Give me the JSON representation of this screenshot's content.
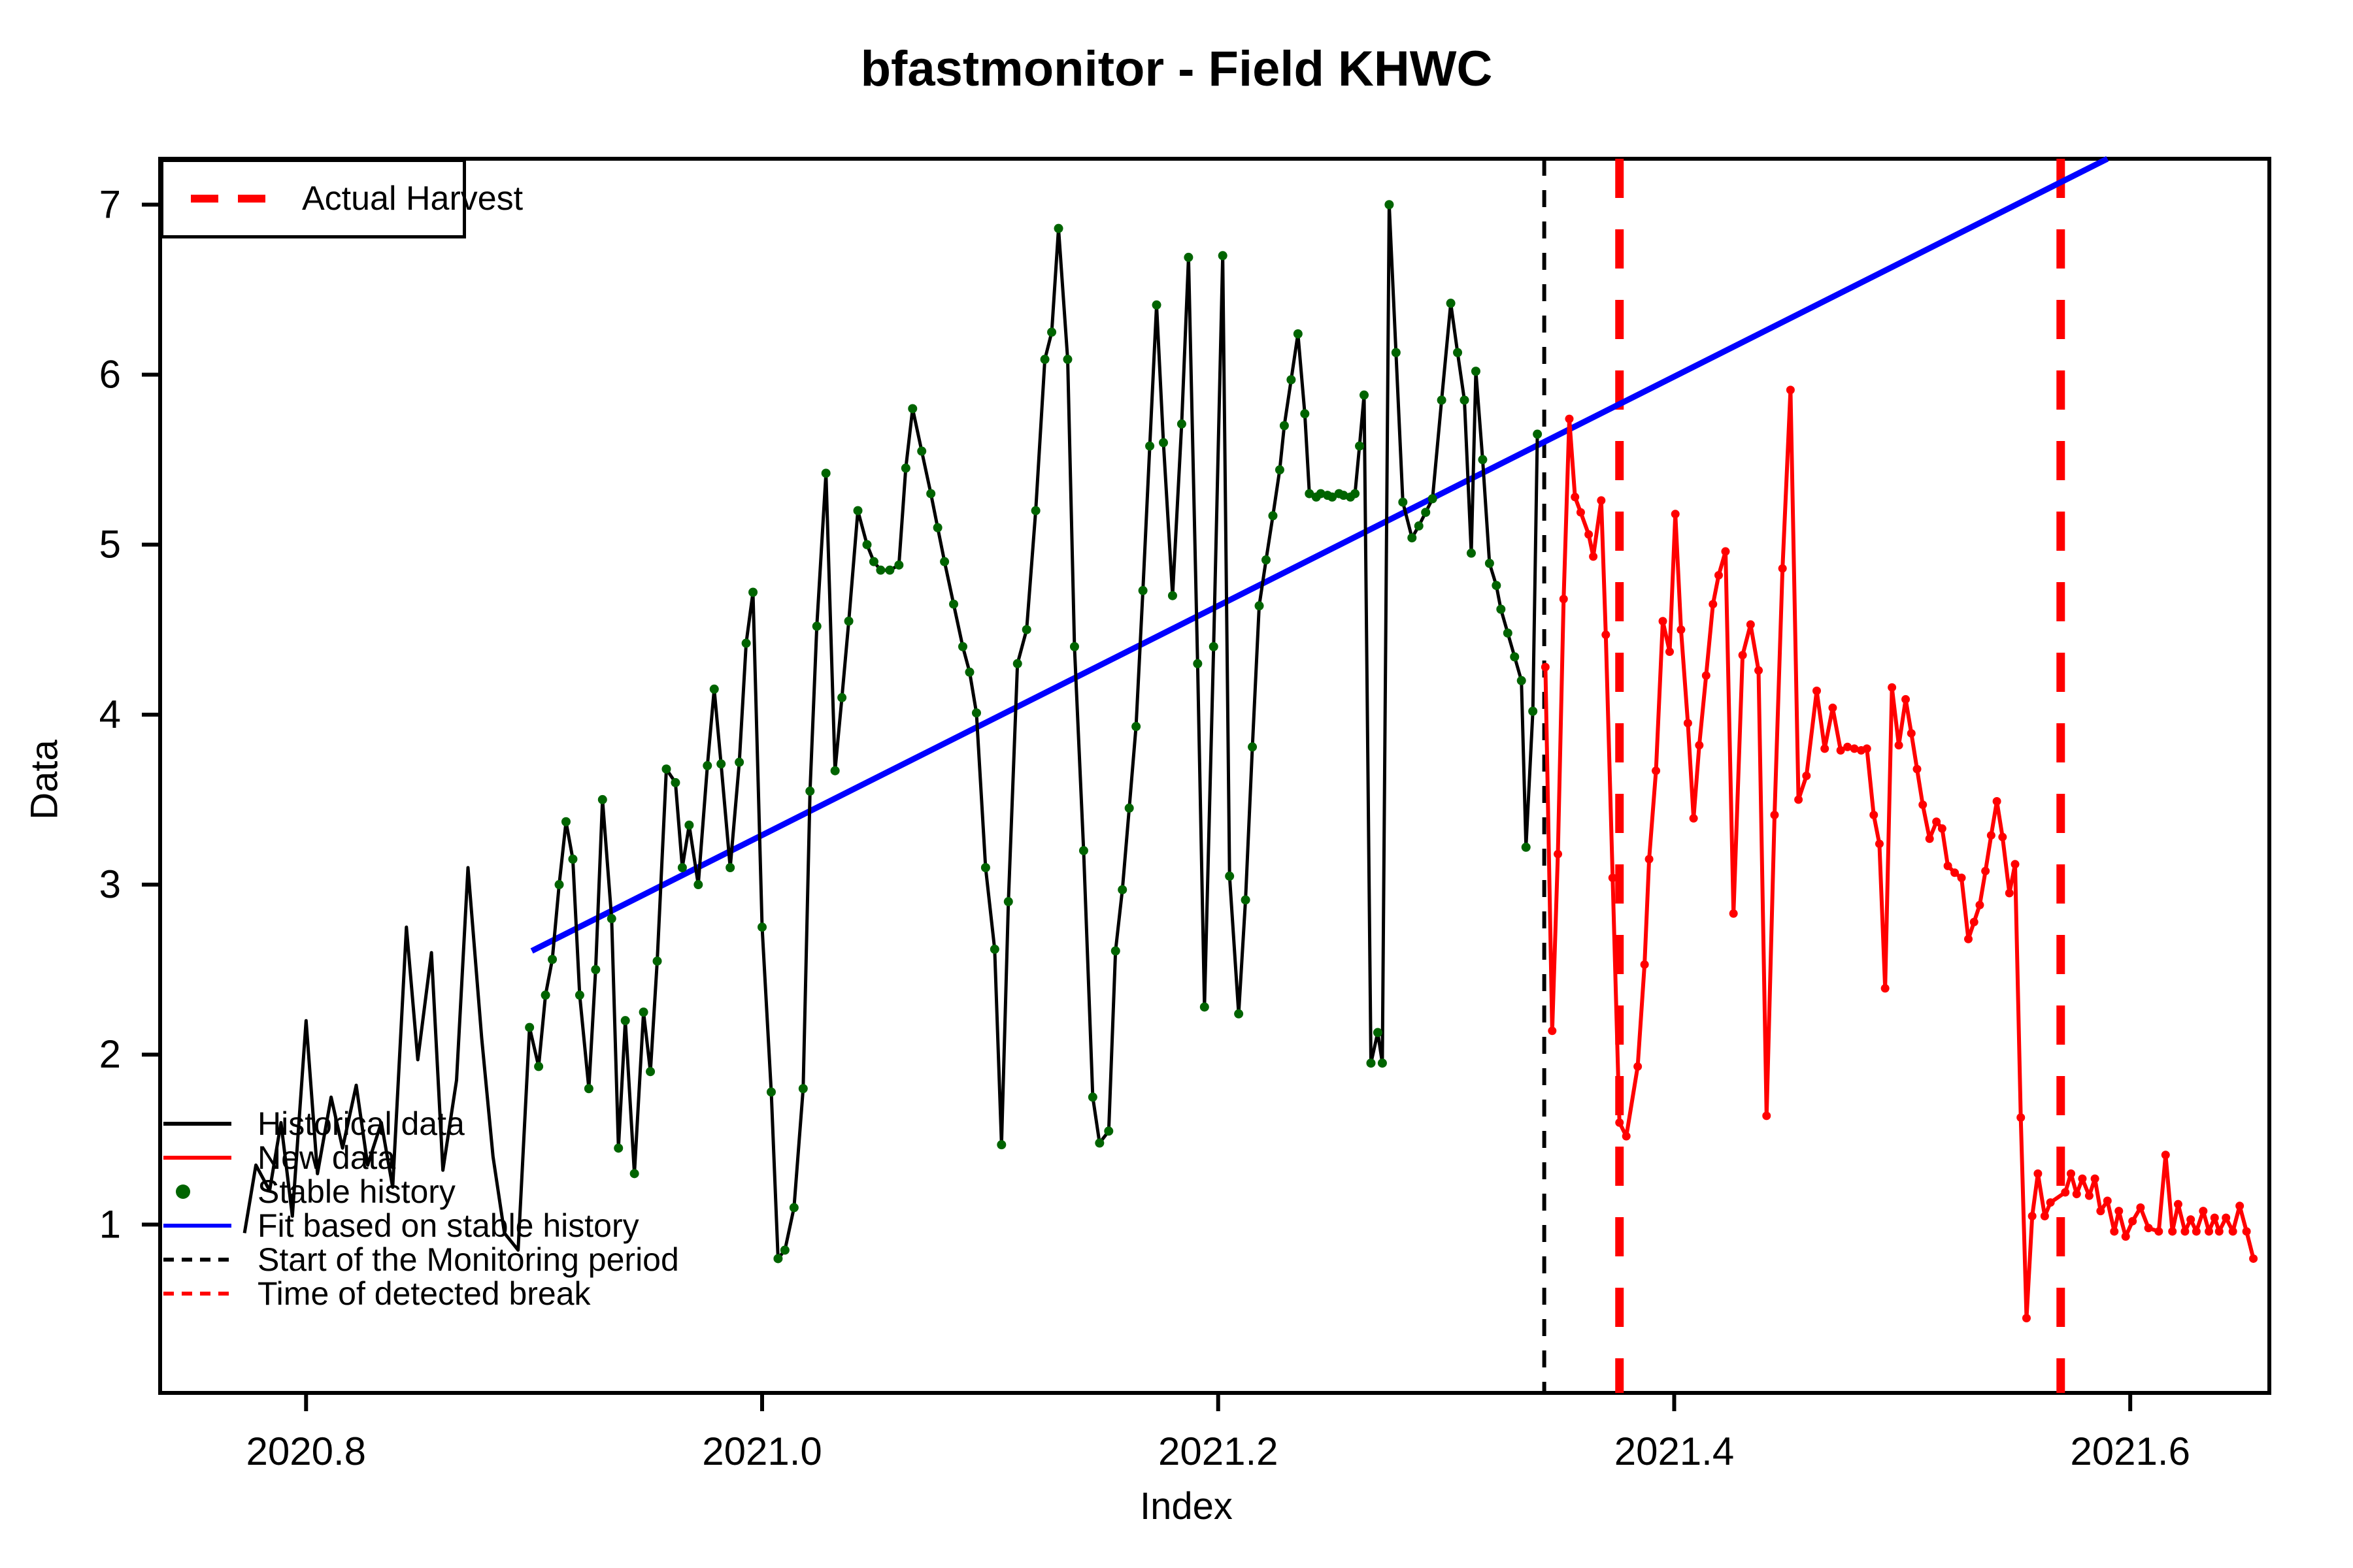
{
  "title": "bfastmonitor - Field KHWC",
  "legend_box": {
    "label": "Actual Harvest"
  },
  "legend_items": [
    {
      "label": "Historical data",
      "kind": "line",
      "color": "#000000"
    },
    {
      "label": "New data",
      "kind": "line",
      "color": "#FF0000"
    },
    {
      "label": "Stable history",
      "kind": "dot",
      "color": "#006400"
    },
    {
      "label": "Fit based on stable history",
      "kind": "line",
      "color": "#0000FF"
    },
    {
      "label": "Start of the Monitoring period",
      "kind": "dashed-line",
      "color": "#000000"
    },
    {
      "label": "Time of detected break",
      "kind": "dashed-line",
      "color": "#FF0000"
    }
  ],
  "chart_data": {
    "type": "line",
    "title": "bfastmonitor - Field KHWC",
    "xlabel": "Index",
    "ylabel": "Data",
    "xlim": [
      2020.736,
      2021.661
    ],
    "ylim": [
      0.01,
      7.27
    ],
    "x_ticks": [
      2020.8,
      2021.0,
      2021.2,
      2021.4,
      2021.6
    ],
    "y_ticks": [
      1,
      2,
      3,
      4,
      5,
      6,
      7
    ],
    "grid": false,
    "colors": {
      "historical": "#000000",
      "new_data": "#FF0000",
      "stable_history_dot": "#006400",
      "fit": "#0000FF",
      "monitor_start": "#000000",
      "detected_break": "#FF0000",
      "actual_harvest": "#FF0000"
    },
    "annotations": {
      "monitor_start_x": 2021.343,
      "detected_break_x": 2021.376,
      "actual_harvest_x": 2021.5695
    },
    "fit_line": {
      "x": [
        2020.899,
        2021.59
      ],
      "y": [
        2.61,
        7.27
      ]
    },
    "stable_history_from": 2020.896,
    "series": [
      {
        "name": "Historical data",
        "color": "#000000",
        "points": [
          [
            2020.773,
            0.95
          ],
          [
            2020.778,
            1.35
          ],
          [
            2020.784,
            1.2
          ],
          [
            2020.789,
            1.6
          ],
          [
            2020.794,
            1.05
          ],
          [
            2020.8,
            2.2
          ],
          [
            2020.805,
            1.3
          ],
          [
            2020.811,
            1.75
          ],
          [
            2020.816,
            1.45
          ],
          [
            2020.822,
            1.82
          ],
          [
            2020.827,
            1.35
          ],
          [
            2020.833,
            1.6
          ],
          [
            2020.838,
            1.22
          ],
          [
            2020.844,
            2.75
          ],
          [
            2020.849,
            1.97
          ],
          [
            2020.855,
            2.6
          ],
          [
            2020.86,
            1.32
          ],
          [
            2020.866,
            1.85
          ],
          [
            2020.871,
            3.1
          ],
          [
            2020.877,
            2.1
          ],
          [
            2020.882,
            1.4
          ],
          [
            2020.887,
            0.95
          ],
          [
            2020.893,
            0.85
          ],
          [
            2020.898,
            2.16
          ],
          [
            2020.902,
            1.93
          ],
          [
            2020.905,
            2.35
          ],
          [
            2020.908,
            2.56
          ],
          [
            2020.911,
            3.0
          ],
          [
            2020.914,
            3.37
          ],
          [
            2020.917,
            3.15
          ],
          [
            2020.92,
            2.35
          ],
          [
            2020.924,
            1.8
          ],
          [
            2020.927,
            2.5
          ],
          [
            2020.93,
            3.5
          ],
          [
            2020.934,
            2.8
          ],
          [
            2020.937,
            1.45
          ],
          [
            2020.94,
            2.2
          ],
          [
            2020.944,
            1.3
          ],
          [
            2020.948,
            2.25
          ],
          [
            2020.951,
            1.9
          ],
          [
            2020.954,
            2.55
          ],
          [
            2020.958,
            3.68
          ],
          [
            2020.962,
            3.6
          ],
          [
            2020.965,
            3.1
          ],
          [
            2020.968,
            3.35
          ],
          [
            2020.972,
            3.0
          ],
          [
            2020.976,
            3.7
          ],
          [
            2020.979,
            4.15
          ],
          [
            2020.982,
            3.71
          ],
          [
            2020.986,
            3.1
          ],
          [
            2020.99,
            3.72
          ],
          [
            2020.993,
            4.42
          ],
          [
            2020.996,
            4.72
          ],
          [
            2021.0,
            2.75
          ],
          [
            2021.004,
            1.78
          ],
          [
            2021.007,
            0.8
          ],
          [
            2021.01,
            0.85
          ],
          [
            2021.014,
            1.1
          ],
          [
            2021.018,
            1.8
          ],
          [
            2021.021,
            3.55
          ],
          [
            2021.024,
            4.52
          ],
          [
            2021.028,
            5.42
          ],
          [
            2021.032,
            3.67
          ],
          [
            2021.035,
            4.1
          ],
          [
            2021.038,
            4.55
          ],
          [
            2021.042,
            5.2
          ],
          [
            2021.046,
            5.0
          ],
          [
            2021.049,
            4.9
          ],
          [
            2021.052,
            4.85
          ],
          [
            2021.056,
            4.85
          ],
          [
            2021.06,
            4.88
          ],
          [
            2021.063,
            5.45
          ],
          [
            2021.066,
            5.8
          ],
          [
            2021.07,
            5.55
          ],
          [
            2021.074,
            5.3
          ],
          [
            2021.077,
            5.1
          ],
          [
            2021.08,
            4.9
          ],
          [
            2021.084,
            4.65
          ],
          [
            2021.088,
            4.4
          ],
          [
            2021.091,
            4.25
          ],
          [
            2021.094,
            4.01
          ],
          [
            2021.098,
            3.1
          ],
          [
            2021.102,
            2.62
          ],
          [
            2021.105,
            1.47
          ],
          [
            2021.108,
            2.9
          ],
          [
            2021.112,
            4.3
          ],
          [
            2021.116,
            4.5
          ],
          [
            2021.12,
            5.2
          ],
          [
            2021.124,
            6.09
          ],
          [
            2021.127,
            6.25
          ],
          [
            2021.13,
            6.86
          ],
          [
            2021.134,
            6.09
          ],
          [
            2021.137,
            4.4
          ],
          [
            2021.141,
            3.2
          ],
          [
            2021.145,
            1.75
          ],
          [
            2021.148,
            1.48
          ],
          [
            2021.152,
            1.55
          ],
          [
            2021.155,
            2.61
          ],
          [
            2021.158,
            2.97
          ],
          [
            2021.161,
            3.45
          ],
          [
            2021.164,
            3.93
          ],
          [
            2021.167,
            4.73
          ],
          [
            2021.17,
            5.58
          ],
          [
            2021.173,
            6.41
          ],
          [
            2021.176,
            5.6
          ],
          [
            2021.18,
            4.7
          ],
          [
            2021.184,
            5.71
          ],
          [
            2021.187,
            6.69
          ],
          [
            2021.191,
            4.3
          ],
          [
            2021.194,
            2.28
          ],
          [
            2021.198,
            4.4
          ],
          [
            2021.202,
            6.7
          ],
          [
            2021.205,
            3.05
          ],
          [
            2021.209,
            2.24
          ],
          [
            2021.212,
            2.91
          ],
          [
            2021.215,
            3.81
          ],
          [
            2021.218,
            4.64
          ],
          [
            2021.221,
            4.91
          ],
          [
            2021.224,
            5.17
          ],
          [
            2021.227,
            5.44
          ],
          [
            2021.229,
            5.7
          ],
          [
            2021.232,
            5.97
          ],
          [
            2021.235,
            6.24
          ],
          [
            2021.238,
            5.77
          ],
          [
            2021.24,
            5.3
          ],
          [
            2021.243,
            5.28
          ],
          [
            2021.245,
            5.3
          ],
          [
            2021.248,
            5.29
          ],
          [
            2021.25,
            5.28
          ],
          [
            2021.253,
            5.3
          ],
          [
            2021.255,
            5.29
          ],
          [
            2021.258,
            5.28
          ],
          [
            2021.26,
            5.3
          ],
          [
            2021.262,
            5.58
          ],
          [
            2021.264,
            5.88
          ],
          [
            2021.267,
            1.95
          ],
          [
            2021.27,
            2.13
          ],
          [
            2021.272,
            1.95
          ],
          [
            2021.275,
            7.0
          ],
          [
            2021.278,
            6.13
          ],
          [
            2021.281,
            5.25
          ],
          [
            2021.285,
            5.04
          ],
          [
            2021.288,
            5.11
          ],
          [
            2021.291,
            5.19
          ],
          [
            2021.294,
            5.27
          ],
          [
            2021.298,
            5.85
          ],
          [
            2021.302,
            6.42
          ],
          [
            2021.305,
            6.13
          ],
          [
            2021.308,
            5.85
          ],
          [
            2021.311,
            4.95
          ],
          [
            2021.313,
            6.02
          ],
          [
            2021.316,
            5.5
          ],
          [
            2021.319,
            4.89
          ],
          [
            2021.322,
            4.76
          ],
          [
            2021.324,
            4.62
          ],
          [
            2021.327,
            4.48
          ],
          [
            2021.33,
            4.34
          ],
          [
            2021.333,
            4.2
          ],
          [
            2021.335,
            3.22
          ],
          [
            2021.338,
            4.02
          ],
          [
            2021.34,
            5.65
          ]
        ]
      },
      {
        "name": "New data",
        "color": "#FF0000",
        "points": [
          [
            2021.3435,
            4.28
          ],
          [
            2021.3465,
            2.14
          ],
          [
            2021.349,
            3.18
          ],
          [
            2021.3515,
            4.68
          ],
          [
            2021.354,
            5.74
          ],
          [
            2021.3565,
            5.28
          ],
          [
            2021.359,
            5.19
          ],
          [
            2021.3625,
            5.06
          ],
          [
            2021.3645,
            4.93
          ],
          [
            2021.368,
            5.26
          ],
          [
            2021.37,
            4.47
          ],
          [
            2021.373,
            3.04
          ],
          [
            2021.376,
            1.6
          ],
          [
            2021.379,
            1.52
          ],
          [
            2021.384,
            1.93
          ],
          [
            2021.387,
            2.53
          ],
          [
            2021.389,
            3.15
          ],
          [
            2021.392,
            3.67
          ],
          [
            2021.395,
            4.55
          ],
          [
            2021.398,
            4.37
          ],
          [
            2021.4005,
            5.18
          ],
          [
            2021.403,
            4.5
          ],
          [
            2021.406,
            3.95
          ],
          [
            2021.4085,
            3.39
          ],
          [
            2021.411,
            3.82
          ],
          [
            2021.414,
            4.23
          ],
          [
            2021.417,
            4.65
          ],
          [
            2021.4195,
            4.82
          ],
          [
            2021.4225,
            4.96
          ],
          [
            2021.426,
            2.83
          ],
          [
            2021.43,
            4.35
          ],
          [
            2021.4335,
            4.53
          ],
          [
            2021.437,
            4.26
          ],
          [
            2021.4405,
            1.64
          ],
          [
            2021.444,
            3.41
          ],
          [
            2021.4475,
            4.86
          ],
          [
            2021.451,
            5.91
          ],
          [
            2021.4545,
            3.5
          ],
          [
            2021.458,
            3.64
          ],
          [
            2021.4625,
            4.14
          ],
          [
            2021.466,
            3.8
          ],
          [
            2021.4695,
            4.04
          ],
          [
            2021.473,
            3.79
          ],
          [
            2021.476,
            3.81
          ],
          [
            2021.479,
            3.8
          ],
          [
            2021.482,
            3.79
          ],
          [
            2021.4845,
            3.8
          ],
          [
            2021.4875,
            3.41
          ],
          [
            2021.49,
            3.24
          ],
          [
            2021.4925,
            2.39
          ],
          [
            2021.4955,
            4.16
          ],
          [
            2021.4985,
            3.82
          ],
          [
            2021.5015,
            4.09
          ],
          [
            2021.504,
            3.89
          ],
          [
            2021.5065,
            3.68
          ],
          [
            2021.509,
            3.47
          ],
          [
            2021.512,
            3.27
          ],
          [
            2021.515,
            3.37
          ],
          [
            2021.5175,
            3.33
          ],
          [
            2021.52,
            3.11
          ],
          [
            2021.523,
            3.07
          ],
          [
            2021.526,
            3.04
          ],
          [
            2021.529,
            2.68
          ],
          [
            2021.5315,
            2.78
          ],
          [
            2021.534,
            2.88
          ],
          [
            2021.5365,
            3.08
          ],
          [
            2021.539,
            3.29
          ],
          [
            2021.5415,
            3.49
          ],
          [
            2021.544,
            3.28
          ],
          [
            2021.547,
            2.95
          ],
          [
            2021.5495,
            3.12
          ],
          [
            2021.552,
            1.63
          ],
          [
            2021.5545,
            0.45
          ],
          [
            2021.557,
            1.05
          ],
          [
            2021.5595,
            1.3
          ],
          [
            2021.5625,
            1.05
          ],
          [
            2021.565,
            1.13
          ],
          [
            2021.5715,
            1.19
          ],
          [
            2021.574,
            1.3
          ],
          [
            2021.5765,
            1.18
          ],
          [
            2021.579,
            1.27
          ],
          [
            2021.582,
            1.17
          ],
          [
            2021.5845,
            1.27
          ],
          [
            2021.587,
            1.08
          ],
          [
            2021.59,
            1.14
          ],
          [
            2021.593,
            0.96
          ],
          [
            2021.595,
            1.08
          ],
          [
            2021.598,
            0.93
          ],
          [
            2021.601,
            1.02
          ],
          [
            2021.6045,
            1.1
          ],
          [
            2021.608,
            0.98
          ],
          [
            2021.6125,
            0.96
          ],
          [
            2021.6155,
            1.41
          ],
          [
            2021.6185,
            0.96
          ],
          [
            2021.621,
            1.12
          ],
          [
            2021.624,
            0.96
          ],
          [
            2021.6265,
            1.03
          ],
          [
            2021.629,
            0.96
          ],
          [
            2021.632,
            1.08
          ],
          [
            2021.6345,
            0.96
          ],
          [
            2021.637,
            1.04
          ],
          [
            2021.639,
            0.96
          ],
          [
            2021.642,
            1.04
          ],
          [
            2021.645,
            0.96
          ],
          [
            2021.648,
            1.11
          ],
          [
            2021.651,
            0.96
          ],
          [
            2021.654,
            0.8
          ]
        ]
      }
    ]
  }
}
